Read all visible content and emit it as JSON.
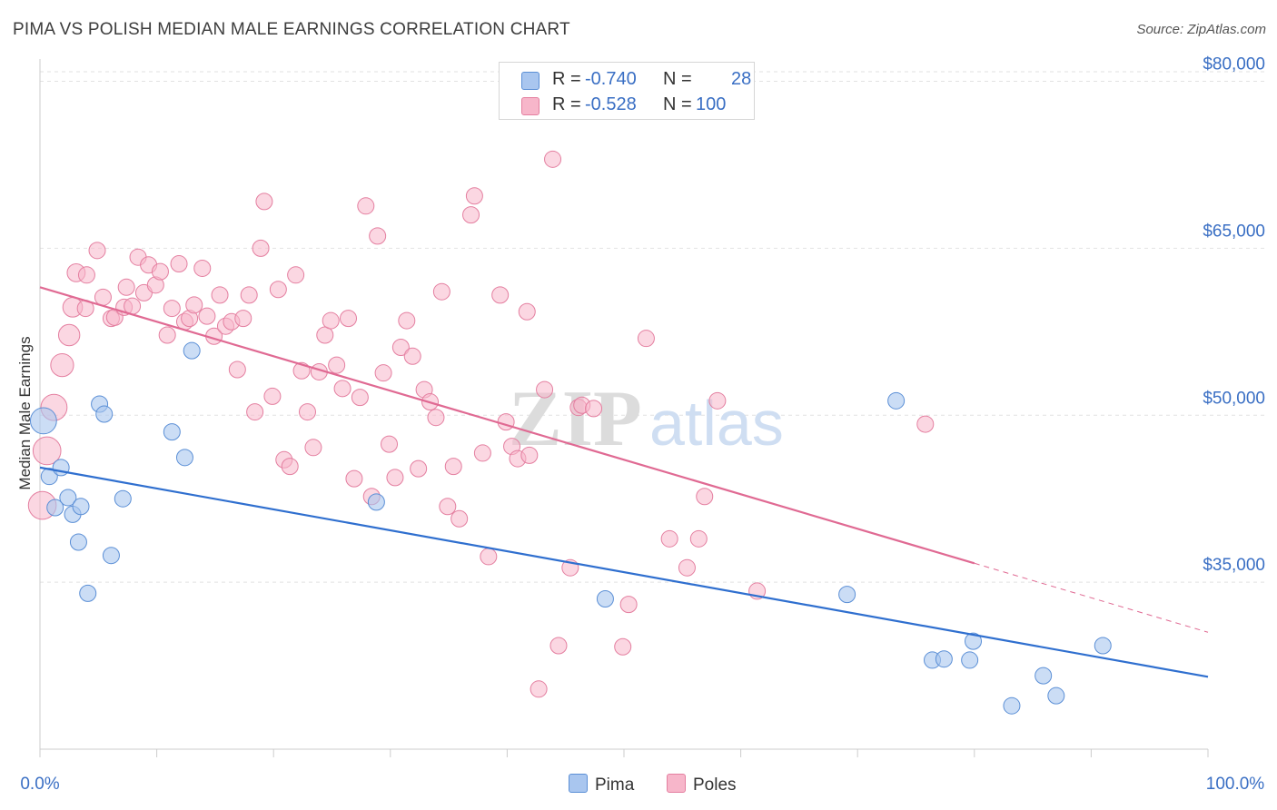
{
  "title": "PIMA VS POLISH MEDIAN MALE EARNINGS CORRELATION CHART",
  "source": "Source: ZipAtlas.com",
  "watermark": {
    "zip": "ZIP",
    "atlas": "atlas"
  },
  "legend": {
    "rows": [
      {
        "r_label": "R =",
        "r_value": "-0.740",
        "n_label": "N =",
        "n_value": "28",
        "color": "#a9c6ef"
      },
      {
        "r_label": "R =",
        "r_value": "-0.528",
        "n_label": "N =",
        "n_value": "100",
        "color": "#f7b6ca"
      }
    ]
  },
  "bottom_legend": [
    {
      "label": "Pima",
      "color": "#a9c6ef"
    },
    {
      "label": "Poles",
      "color": "#f7b6ca"
    }
  ],
  "chart_data": {
    "type": "scatter",
    "xlabel": "",
    "ylabel": "Median Male Earnings",
    "xlim": [
      0,
      100
    ],
    "ylim": [
      20000,
      82000
    ],
    "x_tick_labels": [
      "0.0%",
      "100.0%"
    ],
    "y_ticks": [
      35000,
      50000,
      65000,
      80000
    ],
    "y_tick_labels": [
      "$35,000",
      "$50,000",
      "$65,000",
      "$80,000"
    ],
    "grid": true,
    "colors": {
      "pima_fill": "#a9c6ef",
      "pima_stroke": "#5b8fd6",
      "pima_line": "#2f6fcf",
      "poles_fill": "#f7b6ca",
      "poles_stroke": "#e47fa0",
      "poles_line": "#e06a93",
      "axis_text": "#3a6fc4"
    },
    "series": [
      {
        "name": "Pima",
        "trend": {
          "x": [
            0,
            100
          ],
          "y": [
            45300,
            26500
          ]
        },
        "points": [
          {
            "x": 0.3,
            "y": 49500,
            "s": 1.6
          },
          {
            "x": 0.8,
            "y": 44500,
            "s": 1
          },
          {
            "x": 1.8,
            "y": 45300,
            "s": 1
          },
          {
            "x": 1.3,
            "y": 41700,
            "s": 1
          },
          {
            "x": 2.4,
            "y": 42600,
            "s": 1
          },
          {
            "x": 2.8,
            "y": 41100,
            "s": 1
          },
          {
            "x": 3.5,
            "y": 41800,
            "s": 1
          },
          {
            "x": 3.3,
            "y": 38600,
            "s": 1
          },
          {
            "x": 4.1,
            "y": 34000,
            "s": 1
          },
          {
            "x": 5.1,
            "y": 51000,
            "s": 1
          },
          {
            "x": 5.5,
            "y": 50100,
            "s": 1
          },
          {
            "x": 6.1,
            "y": 37400,
            "s": 1
          },
          {
            "x": 7.1,
            "y": 42500,
            "s": 1
          },
          {
            "x": 11.3,
            "y": 48500,
            "s": 1
          },
          {
            "x": 12.4,
            "y": 46200,
            "s": 1
          },
          {
            "x": 13.0,
            "y": 55800,
            "s": 1
          },
          {
            "x": 28.8,
            "y": 42200,
            "s": 1
          },
          {
            "x": 48.4,
            "y": 33500,
            "s": 1
          },
          {
            "x": 69.1,
            "y": 33900,
            "s": 1
          },
          {
            "x": 73.3,
            "y": 51300,
            "s": 1
          },
          {
            "x": 76.4,
            "y": 28000,
            "s": 1
          },
          {
            "x": 77.4,
            "y": 28100,
            "s": 1
          },
          {
            "x": 79.6,
            "y": 28000,
            "s": 1
          },
          {
            "x": 79.9,
            "y": 29700,
            "s": 1
          },
          {
            "x": 83.2,
            "y": 23900,
            "s": 1
          },
          {
            "x": 85.9,
            "y": 26600,
            "s": 1
          },
          {
            "x": 87.0,
            "y": 24800,
            "s": 1
          },
          {
            "x": 91.0,
            "y": 29300,
            "s": 1
          }
        ]
      },
      {
        "name": "Poles",
        "trend": {
          "x": [
            0,
            80.0
          ],
          "y": [
            61500,
            36700
          ]
        },
        "trend_ext": {
          "x": [
            80.0,
            100
          ],
          "y": [
            36700,
            30500
          ]
        },
        "points": [
          {
            "x": 0.2,
            "y": 41900,
            "s": 1.7
          },
          {
            "x": 0.6,
            "y": 46800,
            "s": 1.7
          },
          {
            "x": 1.2,
            "y": 50700,
            "s": 1.6
          },
          {
            "x": 1.9,
            "y": 54500,
            "s": 1.4
          },
          {
            "x": 2.5,
            "y": 57200,
            "s": 1.3
          },
          {
            "x": 2.8,
            "y": 59700,
            "s": 1.2
          },
          {
            "x": 3.1,
            "y": 62800,
            "s": 1.1
          },
          {
            "x": 4.0,
            "y": 62600,
            "s": 1
          },
          {
            "x": 3.9,
            "y": 59600,
            "s": 1
          },
          {
            "x": 4.9,
            "y": 64800,
            "s": 1
          },
          {
            "x": 5.4,
            "y": 60600,
            "s": 1
          },
          {
            "x": 6.1,
            "y": 58700,
            "s": 1
          },
          {
            "x": 6.4,
            "y": 58800,
            "s": 1
          },
          {
            "x": 7.2,
            "y": 59700,
            "s": 1
          },
          {
            "x": 7.4,
            "y": 61500,
            "s": 1
          },
          {
            "x": 7.9,
            "y": 59800,
            "s": 1
          },
          {
            "x": 8.4,
            "y": 64200,
            "s": 1
          },
          {
            "x": 8.9,
            "y": 61000,
            "s": 1
          },
          {
            "x": 9.3,
            "y": 63500,
            "s": 1
          },
          {
            "x": 9.9,
            "y": 61700,
            "s": 1
          },
          {
            "x": 10.3,
            "y": 62900,
            "s": 1
          },
          {
            "x": 10.9,
            "y": 57200,
            "s": 1
          },
          {
            "x": 11.3,
            "y": 59600,
            "s": 1
          },
          {
            "x": 11.9,
            "y": 63600,
            "s": 1
          },
          {
            "x": 12.4,
            "y": 58400,
            "s": 1
          },
          {
            "x": 12.8,
            "y": 58700,
            "s": 1
          },
          {
            "x": 13.2,
            "y": 59900,
            "s": 1
          },
          {
            "x": 13.9,
            "y": 63200,
            "s": 1
          },
          {
            "x": 14.3,
            "y": 58900,
            "s": 1
          },
          {
            "x": 14.9,
            "y": 57100,
            "s": 1
          },
          {
            "x": 15.4,
            "y": 60800,
            "s": 1
          },
          {
            "x": 15.9,
            "y": 58000,
            "s": 1
          },
          {
            "x": 16.4,
            "y": 58400,
            "s": 1
          },
          {
            "x": 16.9,
            "y": 54100,
            "s": 1
          },
          {
            "x": 17.4,
            "y": 58700,
            "s": 1
          },
          {
            "x": 17.9,
            "y": 60800,
            "s": 1
          },
          {
            "x": 18.4,
            "y": 50300,
            "s": 1
          },
          {
            "x": 18.9,
            "y": 65000,
            "s": 1
          },
          {
            "x": 19.2,
            "y": 69200,
            "s": 1
          },
          {
            "x": 19.9,
            "y": 51700,
            "s": 1
          },
          {
            "x": 20.4,
            "y": 61300,
            "s": 1
          },
          {
            "x": 20.9,
            "y": 46000,
            "s": 1
          },
          {
            "x": 21.4,
            "y": 45400,
            "s": 1
          },
          {
            "x": 21.9,
            "y": 62600,
            "s": 1
          },
          {
            "x": 22.4,
            "y": 54000,
            "s": 1
          },
          {
            "x": 22.9,
            "y": 50300,
            "s": 1
          },
          {
            "x": 23.4,
            "y": 47100,
            "s": 1
          },
          {
            "x": 23.9,
            "y": 53900,
            "s": 1
          },
          {
            "x": 24.4,
            "y": 57200,
            "s": 1
          },
          {
            "x": 24.9,
            "y": 58500,
            "s": 1
          },
          {
            "x": 25.4,
            "y": 54500,
            "s": 1
          },
          {
            "x": 25.9,
            "y": 52400,
            "s": 1
          },
          {
            "x": 26.4,
            "y": 58700,
            "s": 1
          },
          {
            "x": 26.9,
            "y": 44300,
            "s": 1
          },
          {
            "x": 27.4,
            "y": 51600,
            "s": 1
          },
          {
            "x": 27.9,
            "y": 68800,
            "s": 1
          },
          {
            "x": 28.4,
            "y": 42700,
            "s": 1
          },
          {
            "x": 28.9,
            "y": 66100,
            "s": 1
          },
          {
            "x": 29.4,
            "y": 53800,
            "s": 1
          },
          {
            "x": 29.9,
            "y": 47400,
            "s": 1
          },
          {
            "x": 30.4,
            "y": 44400,
            "s": 1
          },
          {
            "x": 30.9,
            "y": 56100,
            "s": 1
          },
          {
            "x": 31.4,
            "y": 58500,
            "s": 1
          },
          {
            "x": 31.9,
            "y": 55300,
            "s": 1
          },
          {
            "x": 32.4,
            "y": 45200,
            "s": 1
          },
          {
            "x": 32.9,
            "y": 52300,
            "s": 1
          },
          {
            "x": 33.4,
            "y": 51200,
            "s": 1
          },
          {
            "x": 33.9,
            "y": 49800,
            "s": 1
          },
          {
            "x": 34.4,
            "y": 61100,
            "s": 1
          },
          {
            "x": 34.9,
            "y": 41800,
            "s": 1
          },
          {
            "x": 35.4,
            "y": 45400,
            "s": 1
          },
          {
            "x": 35.9,
            "y": 40700,
            "s": 1
          },
          {
            "x": 36.9,
            "y": 68000,
            "s": 1
          },
          {
            "x": 37.2,
            "y": 69700,
            "s": 1
          },
          {
            "x": 37.9,
            "y": 46600,
            "s": 1
          },
          {
            "x": 38.4,
            "y": 37300,
            "s": 1
          },
          {
            "x": 39.4,
            "y": 60800,
            "s": 1
          },
          {
            "x": 39.9,
            "y": 49400,
            "s": 1
          },
          {
            "x": 40.4,
            "y": 47200,
            "s": 1
          },
          {
            "x": 40.9,
            "y": 46100,
            "s": 1
          },
          {
            "x": 41.9,
            "y": 46400,
            "s": 1
          },
          {
            "x": 41.7,
            "y": 59300,
            "s": 1
          },
          {
            "x": 42.7,
            "y": 25400,
            "s": 1
          },
          {
            "x": 43.2,
            "y": 52300,
            "s": 1
          },
          {
            "x": 43.9,
            "y": 73000,
            "s": 1
          },
          {
            "x": 44.4,
            "y": 29300,
            "s": 1
          },
          {
            "x": 45.4,
            "y": 36300,
            "s": 1
          },
          {
            "x": 46.1,
            "y": 50700,
            "s": 1
          },
          {
            "x": 46.4,
            "y": 50900,
            "s": 1
          },
          {
            "x": 47.4,
            "y": 50600,
            "s": 1
          },
          {
            "x": 49.9,
            "y": 29200,
            "s": 1
          },
          {
            "x": 50.4,
            "y": 33000,
            "s": 1
          },
          {
            "x": 51.9,
            "y": 56900,
            "s": 1
          },
          {
            "x": 53.9,
            "y": 38900,
            "s": 1
          },
          {
            "x": 55.4,
            "y": 36300,
            "s": 1
          },
          {
            "x": 56.4,
            "y": 38900,
            "s": 1
          },
          {
            "x": 56.9,
            "y": 42700,
            "s": 1
          },
          {
            "x": 58.0,
            "y": 51300,
            "s": 1
          },
          {
            "x": 61.4,
            "y": 34200,
            "s": 1
          },
          {
            "x": 75.8,
            "y": 49200,
            "s": 1
          }
        ]
      }
    ]
  }
}
